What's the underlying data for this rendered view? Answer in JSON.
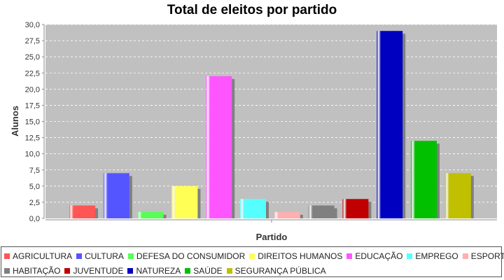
{
  "chart_data": {
    "type": "bar",
    "title": "Total de eleitos por partido",
    "xlabel": "Partido",
    "ylabel": "Alunos",
    "ylim": [
      0,
      30
    ],
    "yticks": [
      "0,0",
      "2,5",
      "5,0",
      "7,5",
      "10,0",
      "12,5",
      "15,0",
      "17,5",
      "20,0",
      "22,5",
      "25,0",
      "27,5",
      "30,0"
    ],
    "grid": true,
    "legend_position": "bottom",
    "series": [
      {
        "name": "AGRICULTURA",
        "value": 2,
        "color": "#ff5555"
      },
      {
        "name": "CULTURA",
        "value": 7,
        "color": "#5555ff"
      },
      {
        "name": "DEFESA DO CONSUMIDOR",
        "value": 1,
        "color": "#55ff55"
      },
      {
        "name": "DIREITOS HUMANOS",
        "value": 5,
        "color": "#ffff55"
      },
      {
        "name": "EDUCAÇÃO",
        "value": 22,
        "color": "#ff55ff"
      },
      {
        "name": "EMPREGO",
        "value": 3,
        "color": "#55ffff"
      },
      {
        "name": "ESPORTES",
        "value": 1,
        "color": "#ffafaf"
      },
      {
        "name": "HABITAÇÃO",
        "value": 2,
        "color": "#808080"
      },
      {
        "name": "JUVENTUDE",
        "value": 3,
        "color": "#c00000"
      },
      {
        "name": "NATUREZA",
        "value": 29,
        "color": "#0000c0"
      },
      {
        "name": "SAÚDE",
        "value": 12,
        "color": "#00c000"
      },
      {
        "name": "SEGURANÇA PÚBLICA",
        "value": 7,
        "color": "#c0c000"
      }
    ]
  }
}
